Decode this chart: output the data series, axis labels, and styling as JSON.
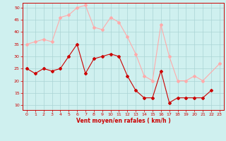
{
  "xlabel": "Vent moyen/en rafales ( km/h )",
  "background_color": "#cff0ef",
  "grid_color": "#aad4d4",
  "x": [
    0,
    1,
    2,
    3,
    4,
    5,
    6,
    7,
    8,
    9,
    10,
    11,
    12,
    13,
    14,
    15,
    16,
    17,
    18,
    19,
    20,
    21,
    22,
    23
  ],
  "wind_avg": [
    25,
    23,
    25,
    24,
    25,
    30,
    35,
    23,
    29,
    30,
    31,
    30,
    22,
    16,
    13,
    13,
    24,
    11,
    13,
    13,
    13,
    13,
    16,
    null
  ],
  "wind_gust": [
    35,
    36,
    37,
    36,
    46,
    47,
    50,
    51,
    42,
    41,
    46,
    44,
    38,
    31,
    22,
    20,
    43,
    30,
    20,
    20,
    22,
    20,
    null,
    27
  ],
  "avg_color": "#cc0000",
  "gust_color": "#ffaaaa",
  "ylim": [
    8,
    52
  ],
  "yticks": [
    10,
    15,
    20,
    25,
    30,
    35,
    40,
    45,
    50
  ],
  "xticks": [
    0,
    1,
    2,
    3,
    4,
    5,
    6,
    7,
    8,
    9,
    10,
    11,
    12,
    13,
    14,
    15,
    16,
    17,
    18,
    19,
    20,
    21,
    22,
    23
  ]
}
